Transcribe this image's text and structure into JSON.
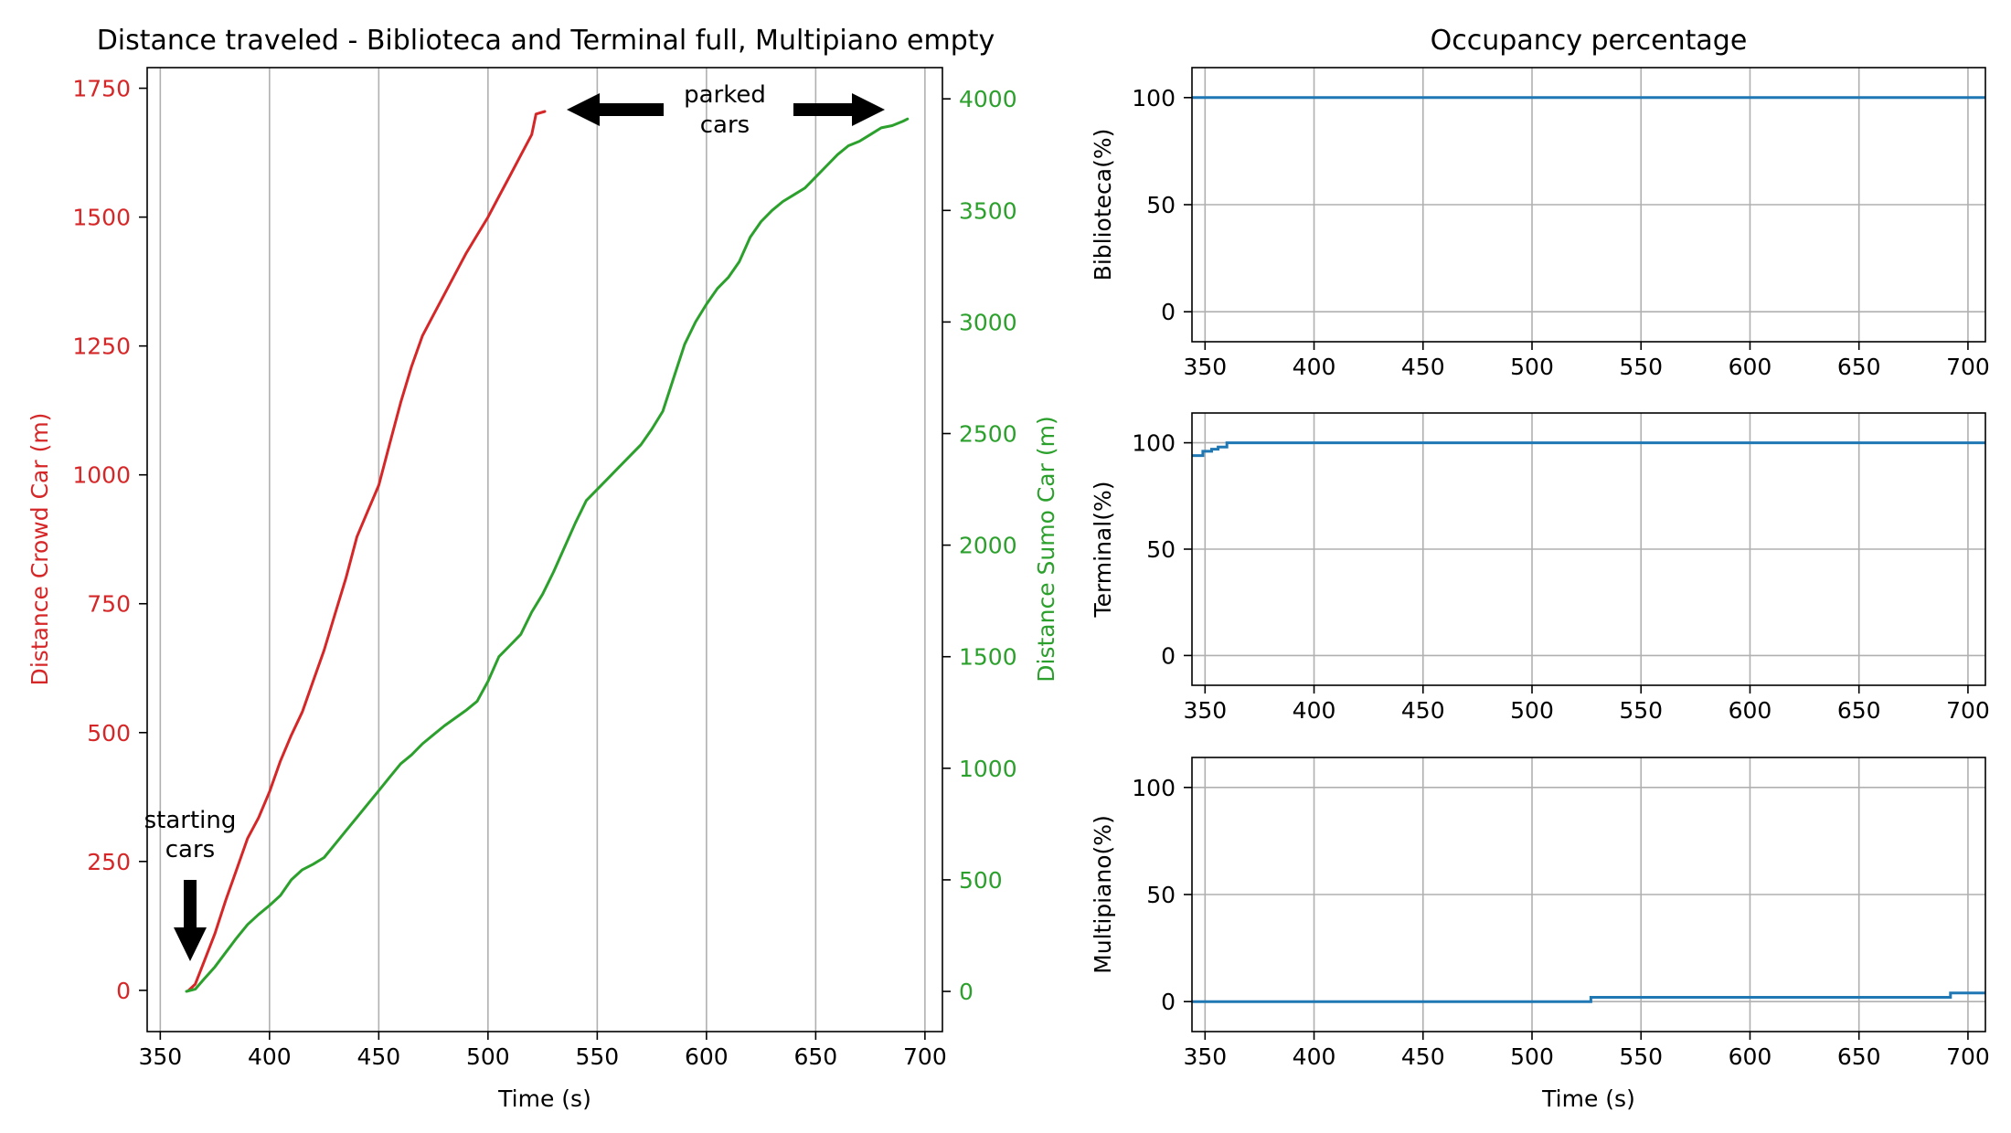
{
  "colors": {
    "crowd": "#d62728",
    "sumo": "#2ca02c",
    "occupancy": "#1f77b4",
    "axis": "#000000",
    "grid": "#b0b0b0"
  },
  "chart_data": [
    {
      "type": "line",
      "title": "Distance traveled - Biblioteca and Terminal full, Multipiano empty",
      "xlabel": "Time (s)",
      "ylabel": "Distance Crowd Car (m)",
      "y2label": "Distance Sumo Car (m)",
      "xlim": [
        344,
        708
      ],
      "ylim": [
        -80,
        1790
      ],
      "y2lim": [
        -180,
        4140
      ],
      "xticks": [
        "350",
        "400",
        "450",
        "500",
        "550",
        "600",
        "650",
        "700"
      ],
      "yticks": [
        "0",
        "250",
        "500",
        "750",
        "1000",
        "1250",
        "1500",
        "1750"
      ],
      "y2ticks": [
        "0",
        "500",
        "1000",
        "1500",
        "2000",
        "2500",
        "3000",
        "3500",
        "4000"
      ],
      "grid": "x",
      "series": [
        {
          "name": "Distance Crowd Car",
          "axis": "left",
          "x": [
            363,
            366,
            370,
            375,
            380,
            385,
            390,
            395,
            400,
            405,
            410,
            415,
            420,
            425,
            430,
            435,
            440,
            445,
            450,
            455,
            460,
            465,
            470,
            475,
            480,
            485,
            490,
            495,
            500,
            505,
            510,
            515,
            520,
            522,
            526
          ],
          "y": [
            0,
            12,
            55,
            110,
            175,
            235,
            295,
            335,
            385,
            445,
            495,
            540,
            600,
            660,
            730,
            800,
            880,
            930,
            980,
            1060,
            1140,
            1210,
            1270,
            1310,
            1350,
            1390,
            1430,
            1465,
            1500,
            1540,
            1580,
            1620,
            1660,
            1700,
            1705
          ]
        },
        {
          "name": "Distance Sumo Car",
          "axis": "right",
          "x": [
            362,
            366,
            370,
            375,
            380,
            385,
            390,
            395,
            400,
            405,
            410,
            415,
            420,
            425,
            430,
            435,
            440,
            445,
            450,
            455,
            460,
            465,
            470,
            475,
            480,
            485,
            490,
            495,
            500,
            505,
            510,
            515,
            520,
            525,
            530,
            535,
            540,
            545,
            550,
            555,
            560,
            565,
            570,
            575,
            580,
            585,
            590,
            595,
            600,
            605,
            610,
            615,
            620,
            625,
            630,
            635,
            640,
            645,
            650,
            655,
            660,
            665,
            670,
            675,
            680,
            685,
            690,
            692
          ],
          "y": [
            0,
            10,
            55,
            110,
            175,
            240,
            300,
            345,
            385,
            430,
            500,
            545,
            570,
            600,
            660,
            720,
            780,
            840,
            900,
            960,
            1020,
            1060,
            1110,
            1150,
            1190,
            1225,
            1260,
            1300,
            1390,
            1500,
            1550,
            1600,
            1700,
            1780,
            1880,
            1990,
            2100,
            2200,
            2250,
            2300,
            2350,
            2400,
            2450,
            2520,
            2600,
            2750,
            2900,
            3000,
            3080,
            3150,
            3200,
            3270,
            3380,
            3450,
            3500,
            3540,
            3570,
            3600,
            3650,
            3700,
            3750,
            3790,
            3810,
            3840,
            3870,
            3880,
            3900,
            3910
          ]
        }
      ],
      "annotations": [
        {
          "text": [
            "starting",
            "cars"
          ],
          "x": 365,
          "y": 250,
          "axis": "left",
          "arrow": "down"
        },
        {
          "text": [
            "parked",
            "cars"
          ],
          "x": 610,
          "y": 3930,
          "axis": "right",
          "arrow": "both"
        }
      ]
    },
    {
      "type": "line",
      "title": "Occupancy percentage",
      "ylabel": "Biblioteca(%)",
      "xlim": [
        344,
        708
      ],
      "ylim": [
        -14,
        114
      ],
      "xticks": [
        "350",
        "400",
        "450",
        "500",
        "550",
        "600",
        "650",
        "700"
      ],
      "yticks": [
        "0",
        "50",
        "100"
      ],
      "grid": "both",
      "series": [
        {
          "name": "Biblioteca",
          "x": [
            344,
            708
          ],
          "y": [
            100,
            100
          ],
          "step": true
        }
      ]
    },
    {
      "type": "line",
      "ylabel": "Terminal(%)",
      "xlim": [
        344,
        708
      ],
      "ylim": [
        -14,
        114
      ],
      "xticks": [
        "350",
        "400",
        "450",
        "500",
        "550",
        "600",
        "650",
        "700"
      ],
      "yticks": [
        "0",
        "50",
        "100"
      ],
      "grid": "both",
      "series": [
        {
          "name": "Terminal",
          "x": [
            344,
            349,
            353,
            356,
            360,
            708
          ],
          "y": [
            94,
            96,
            97,
            98,
            100,
            100
          ],
          "step": true
        }
      ]
    },
    {
      "type": "line",
      "xlabel": "Time (s)",
      "ylabel": "Multipiano(%)",
      "xlim": [
        344,
        708
      ],
      "ylim": [
        -14,
        114
      ],
      "xticks": [
        "350",
        "400",
        "450",
        "500",
        "550",
        "600",
        "650",
        "700"
      ],
      "yticks": [
        "0",
        "50",
        "100"
      ],
      "grid": "both",
      "series": [
        {
          "name": "Multipiano",
          "x": [
            344,
            527,
            692,
            708
          ],
          "y": [
            0,
            2,
            4,
            4
          ],
          "step": true
        }
      ]
    }
  ]
}
